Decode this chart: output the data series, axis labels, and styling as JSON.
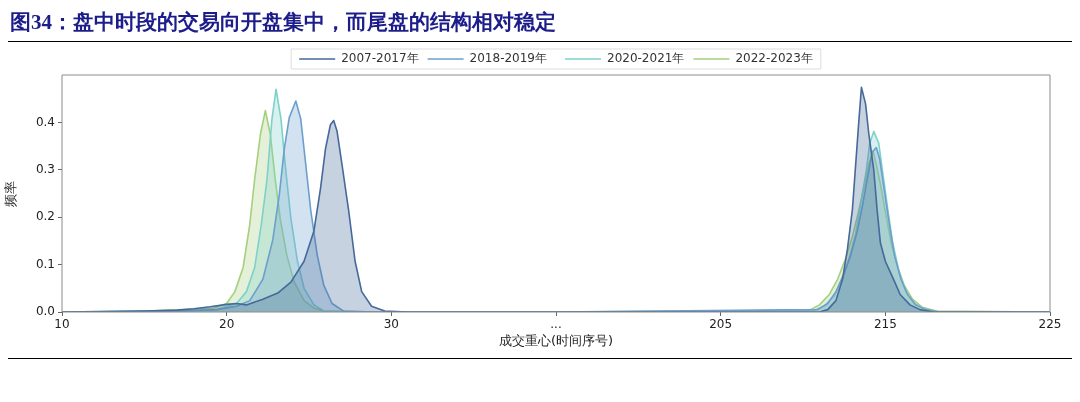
{
  "chart_data": [
    {
      "type": "area",
      "title": "图34：盘中时段的交易向开盘集中，而尾盘的结构相对稳定",
      "xlabel": "成交重心(时间序号)",
      "ylabel": "频率",
      "xlim": [
        10,
        40
      ],
      "xticks": [
        10,
        20,
        30,
        {
          "value": 40,
          "label": "..."
        }
      ],
      "ylim": [
        0,
        0.5
      ],
      "yticks": [
        {
          "value": 0,
          "label": "0.0"
        },
        0.1,
        0.2,
        0.3,
        0.4
      ],
      "grid": false,
      "legend": "top right",
      "series": [
        {
          "name": "2007-2017年",
          "color": "#46699a",
          "x": [
            10,
            15,
            17,
            18,
            19,
            20,
            20.6,
            21.2,
            22.2,
            23.1,
            23.9,
            24.7,
            25.3,
            25.7,
            26.0,
            26.3,
            26.5,
            26.7,
            27.0,
            27.4,
            27.8,
            28.2,
            28.8,
            29.6,
            31,
            40
          ],
          "values": [
            0,
            0.002,
            0.004,
            0.007,
            0.011,
            0.016,
            0.018,
            0.015,
            0.027,
            0.04,
            0.063,
            0.107,
            0.171,
            0.261,
            0.344,
            0.395,
            0.404,
            0.382,
            0.312,
            0.216,
            0.107,
            0.043,
            0.012,
            0.002,
            0,
            0
          ]
        },
        {
          "name": "2018-2019年",
          "color": "#6d9fcd",
          "x": [
            10,
            15,
            18,
            19.4,
            20.6,
            21.4,
            22.2,
            22.8,
            23.2,
            23.5,
            23.8,
            24.2,
            24.5,
            24.8,
            25.1,
            25.5,
            25.9,
            26.4,
            27.1,
            29,
            40
          ],
          "values": [
            0,
            0.001,
            0.003,
            0.005,
            0.012,
            0.024,
            0.069,
            0.152,
            0.248,
            0.344,
            0.41,
            0.445,
            0.407,
            0.312,
            0.216,
            0.12,
            0.056,
            0.018,
            0.002,
            0,
            0
          ]
        },
        {
          "color": "#7ed1cb",
          "x": [
            10,
            15,
            18,
            19.4,
            20.6,
            21.2,
            21.7,
            22.1,
            22.45,
            22.75,
            23.0,
            23.3,
            23.55,
            23.9,
            24.3,
            24.7,
            25.3,
            25.9,
            28,
            40
          ],
          "values": [
            0,
            0.002,
            0.004,
            0.005,
            0.018,
            0.043,
            0.094,
            0.184,
            0.28,
            0.407,
            0.47,
            0.407,
            0.312,
            0.197,
            0.107,
            0.05,
            0.015,
            0.002,
            0,
            0
          ]
        },
        {
          "color": "#a5cf7d",
          "x": [
            10,
            14,
            16,
            17.4,
            19.2,
            20.0,
            20.5,
            21.0,
            21.4,
            21.7,
            22.05,
            22.35,
            22.65,
            22.95,
            23.25,
            23.65,
            24.1,
            24.7,
            25.3,
            25.9,
            28,
            40
          ],
          "values": [
            0,
            0.001,
            0.003,
            0.005,
            0.008,
            0.018,
            0.043,
            0.094,
            0.184,
            0.28,
            0.375,
            0.425,
            0.375,
            0.28,
            0.197,
            0.12,
            0.063,
            0.024,
            0.008,
            0.002,
            0,
            0
          ]
        }
      ]
    },
    {
      "type": "area",
      "xlim": [
        195,
        225
      ],
      "xticks": [
        205,
        215,
        225
      ],
      "ylim": [
        0,
        0.5
      ],
      "tick_labels": "x",
      "grid": false,
      "legend": "top left",
      "series": [
        {
          "color": "#46699a",
          "x": [
            195,
            211,
            211.5,
            212,
            212.4,
            212.7,
            213,
            213.2,
            213.4,
            213.55,
            213.8,
            214.0,
            214.3,
            214.5,
            214.7,
            215.0,
            215.5,
            215.9,
            216.5,
            217.1,
            217.9,
            225
          ],
          "values": [
            0,
            0,
            0.005,
            0.024,
            0.069,
            0.133,
            0.216,
            0.312,
            0.407,
            0.474,
            0.439,
            0.375,
            0.299,
            0.216,
            0.146,
            0.107,
            0.069,
            0.037,
            0.015,
            0.005,
            0,
            0
          ]
        },
        {
          "color": "#6d9fcd",
          "x": [
            195,
            210.9,
            211.5,
            212.0,
            212.5,
            212.9,
            213.3,
            213.6,
            213.9,
            214.2,
            214.45,
            214.65,
            214.95,
            215.25,
            215.55,
            215.95,
            216.35,
            216.85,
            217.45,
            218.3,
            225
          ],
          "values": [
            0,
            0.005,
            0.018,
            0.043,
            0.082,
            0.12,
            0.171,
            0.222,
            0.28,
            0.337,
            0.347,
            0.324,
            0.254,
            0.184,
            0.12,
            0.069,
            0.037,
            0.015,
            0.005,
            0,
            0
          ]
        },
        {
          "name": "2020-2021年",
          "color": "#7ed1cb",
          "x": [
            195,
            210.6,
            211.3,
            211.9,
            212.4,
            212.8,
            213.2,
            213.5,
            213.85,
            214.05,
            214.3,
            214.6,
            214.85,
            215.15,
            215.45,
            215.85,
            216.25,
            216.75,
            217.45,
            218.3,
            225
          ],
          "values": [
            0,
            0.002,
            0.013,
            0.034,
            0.069,
            0.114,
            0.165,
            0.229,
            0.299,
            0.356,
            0.381,
            0.356,
            0.292,
            0.216,
            0.146,
            0.082,
            0.043,
            0.018,
            0.005,
            0,
            0
          ]
        },
        {
          "name": "2022-2023年",
          "color": "#a5cf7d",
          "x": [
            195,
            210.4,
            211.0,
            211.6,
            212.1,
            212.6,
            213.0,
            213.4,
            213.7,
            214.0,
            214.25,
            214.45,
            214.75,
            215.05,
            215.35,
            215.75,
            216.15,
            216.65,
            217.25,
            218.1,
            225
          ],
          "values": [
            0,
            0.004,
            0.015,
            0.037,
            0.069,
            0.114,
            0.159,
            0.216,
            0.261,
            0.312,
            0.34,
            0.312,
            0.261,
            0.203,
            0.146,
            0.095,
            0.056,
            0.027,
            0.01,
            0.002,
            0
          ]
        }
      ]
    }
  ]
}
